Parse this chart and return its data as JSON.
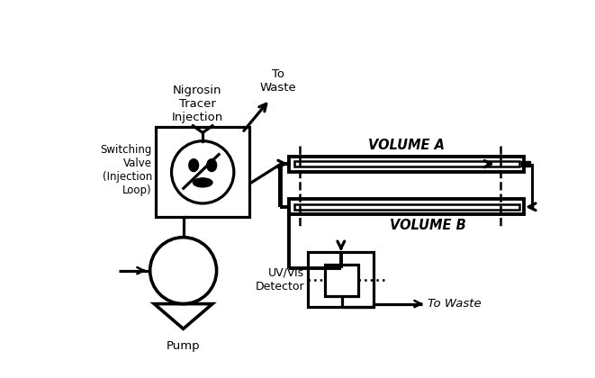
{
  "bg_color": "#ffffff",
  "line_color": "#000000",
  "lw": 1.8,
  "fig_width": 6.61,
  "fig_height": 4.2,
  "labels": {
    "nigrosin": "Nigrosin\nTracer\nInjection",
    "to_waste_top": "To\nWaste",
    "switching_valve": "Switching\nValve\n(Injection\nLoop)",
    "pump": "Pump",
    "volume_a": "VOLUME A",
    "volume_b": "VOLUME B",
    "uvvis": "UV/Vis\nDetector",
    "to_waste_bottom": "To Waste"
  }
}
